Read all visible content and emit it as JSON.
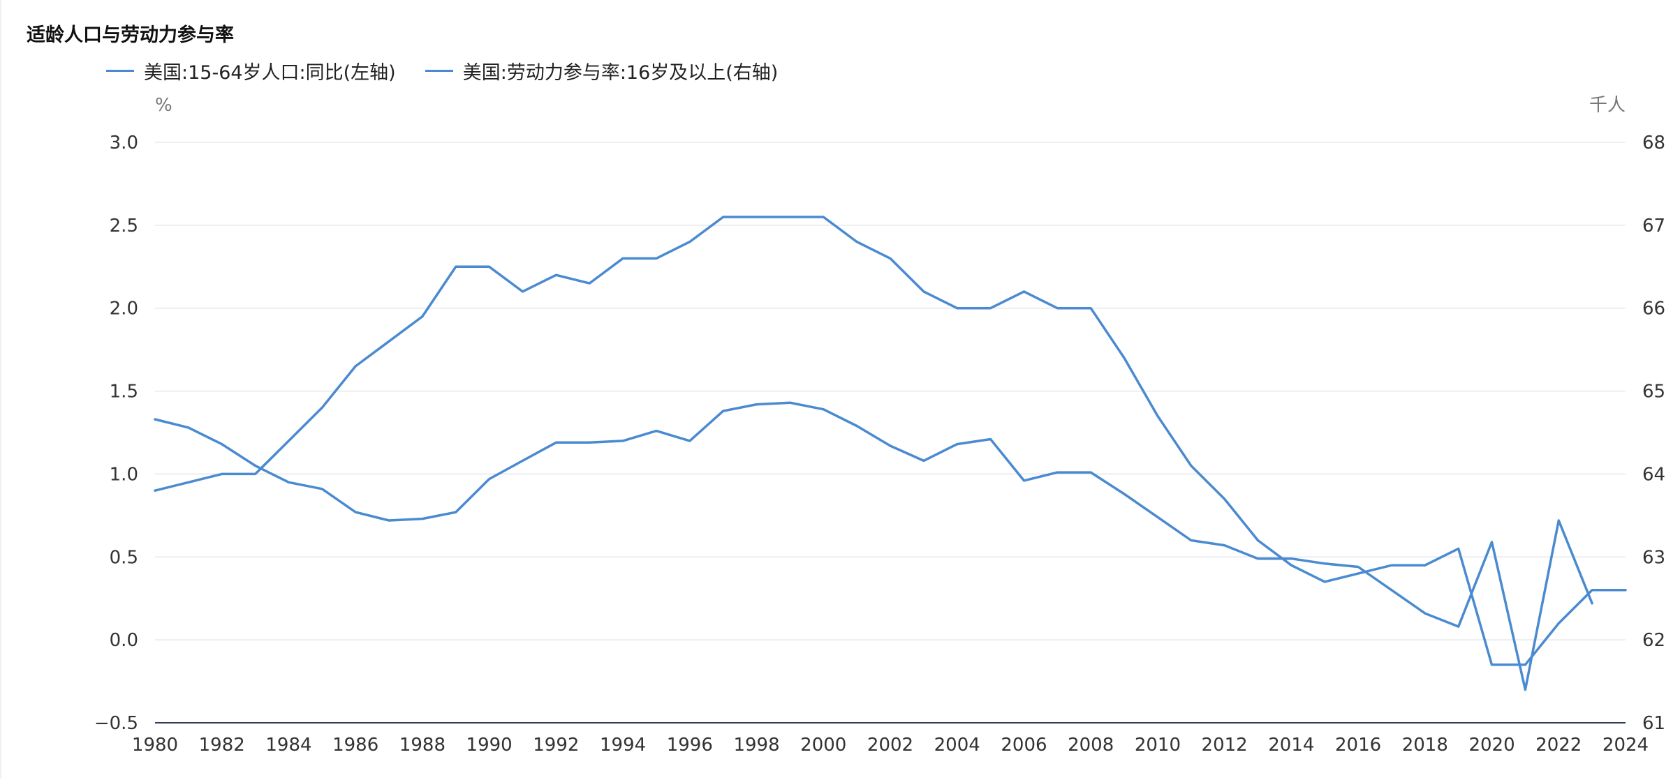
{
  "title": "适龄人口与劳动力参与率",
  "legend": [
    {
      "label": "美国:15-64岁人口:同比(左轴)",
      "color": "#4a8ad0"
    },
    {
      "label": "美国:劳动力参与率:16岁及以上(右轴)",
      "color": "#4a8ad0"
    }
  ],
  "chart_data": {
    "type": "line",
    "title": "适龄人口与劳动力参与率",
    "y_left_unit": "%",
    "y_right_unit": "千人",
    "y_left_range": [
      -0.5,
      3.0
    ],
    "y_left_ticks": [
      "3.0",
      "2.5",
      "2.0",
      "1.5",
      "1.0",
      "0.5",
      "0.0",
      "−0.5"
    ],
    "y_right_range": [
      61,
      68
    ],
    "y_right_ticks": [
      "68",
      "67",
      "66",
      "65",
      "64",
      "63",
      "62",
      "61"
    ],
    "x_range": [
      1980,
      2024
    ],
    "x_ticks": [
      "1980",
      "1982",
      "1984",
      "1986",
      "1988",
      "1990",
      "1992",
      "1994",
      "1996",
      "1998",
      "2000",
      "2002",
      "2004",
      "2006",
      "2008",
      "2010",
      "2012",
      "2014",
      "2016",
      "2018",
      "2020",
      "2022",
      "2024"
    ],
    "grid": true,
    "legend_position": "top-left",
    "series": [
      {
        "name": "美国:15-64岁人口:同比(左轴)",
        "axis": "left",
        "color": "#4a8ad0",
        "x": [
          1980,
          1981,
          1982,
          1983,
          1984,
          1985,
          1986,
          1987,
          1988,
          1989,
          1990,
          1991,
          1992,
          1993,
          1994,
          1995,
          1996,
          1997,
          1998,
          1999,
          2000,
          2001,
          2002,
          2003,
          2004,
          2005,
          2006,
          2007,
          2008,
          2009,
          2010,
          2011,
          2012,
          2013,
          2014,
          2015,
          2016,
          2017,
          2018,
          2019,
          2020,
          2021,
          2022,
          2023
        ],
        "y": [
          1.33,
          1.28,
          1.18,
          1.05,
          0.95,
          0.91,
          0.77,
          0.72,
          0.73,
          0.77,
          0.97,
          1.08,
          1.19,
          1.19,
          1.2,
          1.26,
          1.2,
          1.38,
          1.42,
          1.43,
          1.39,
          1.29,
          1.17,
          1.08,
          1.18,
          1.21,
          0.96,
          1.01,
          1.01,
          0.88,
          0.74,
          0.6,
          0.57,
          0.49,
          0.49,
          0.46,
          0.44,
          0.3,
          0.16,
          0.08,
          0.59,
          -0.3,
          0.72,
          0.22
        ]
      },
      {
        "name": "美国:劳动力参与率:16岁及以上(右轴)",
        "axis": "right",
        "color": "#4a8ad0",
        "x": [
          1980,
          1981,
          1982,
          1983,
          1984,
          1985,
          1986,
          1987,
          1988,
          1989,
          1990,
          1991,
          1992,
          1993,
          1994,
          1995,
          1996,
          1997,
          1998,
          1999,
          2000,
          2001,
          2002,
          2003,
          2004,
          2005,
          2006,
          2007,
          2008,
          2009,
          2010,
          2011,
          2012,
          2013,
          2014,
          2015,
          2016,
          2017,
          2018,
          2019,
          2020,
          2021,
          2022,
          2023,
          2024
        ],
        "y": [
          63.8,
          63.9,
          64.0,
          64.0,
          64.4,
          64.8,
          65.3,
          65.6,
          65.9,
          66.5,
          66.5,
          66.2,
          66.4,
          66.3,
          66.6,
          66.6,
          66.8,
          67.1,
          67.1,
          67.1,
          67.1,
          66.8,
          66.6,
          66.2,
          66.0,
          66.0,
          66.2,
          66.0,
          66.0,
          65.4,
          64.7,
          64.1,
          63.7,
          63.2,
          62.9,
          62.7,
          62.8,
          62.9,
          62.9,
          63.1,
          61.7,
          61.7,
          62.2,
          62.6,
          62.6
        ]
      }
    ]
  }
}
